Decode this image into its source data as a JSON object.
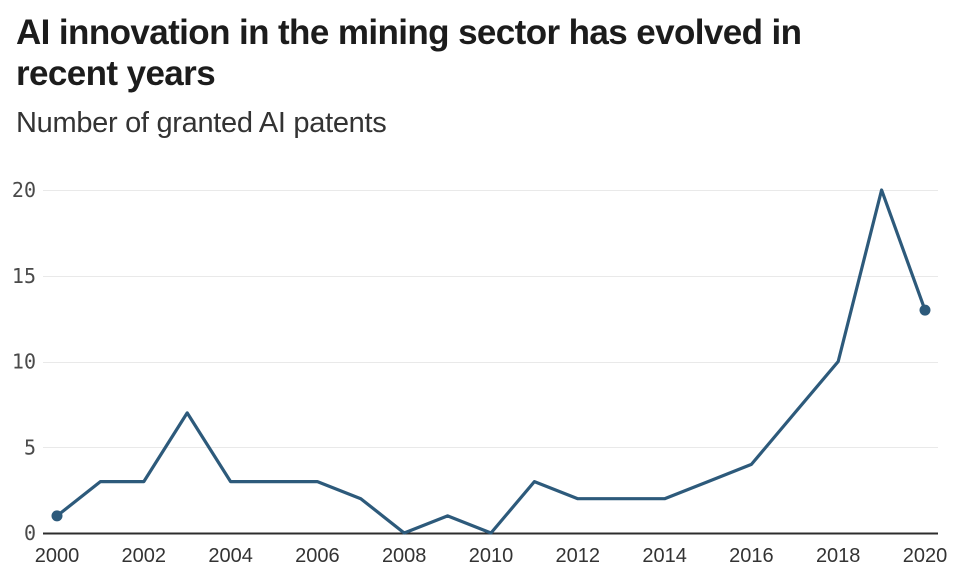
{
  "chart_data": {
    "type": "line",
    "title": "AI innovation in the mining sector has evolved in recent years",
    "subtitle": "Number of granted AI patents",
    "x": [
      2000,
      2001,
      2002,
      2003,
      2004,
      2005,
      2006,
      2007,
      2008,
      2009,
      2010,
      2011,
      2012,
      2013,
      2014,
      2015,
      2016,
      2017,
      2018,
      2019,
      2020
    ],
    "values": [
      1,
      3,
      3,
      7,
      3,
      3,
      3,
      2,
      0,
      1,
      0,
      3,
      2,
      2,
      2,
      3,
      4,
      7,
      10,
      20,
      13
    ],
    "xlabel": "",
    "ylabel": "",
    "ylim": [
      0,
      20
    ],
    "yticks": [
      0,
      5,
      10,
      15,
      20
    ],
    "xticks": [
      2000,
      2002,
      2004,
      2006,
      2008,
      2010,
      2012,
      2014,
      2016,
      2018,
      2020
    ],
    "grid": "horizontal-only",
    "legend": "none",
    "markers": "first-and-last-point-only"
  },
  "colors": {
    "line": "#2d5a7b",
    "marker": "#2d5a7b",
    "grid": "#e9e9e9",
    "axis": "#2d2d2d",
    "title_text": "#1c1c1c",
    "subtitle_text": "#333333",
    "y_tick_text": "#4a4a4a",
    "x_tick_text": "#333333"
  }
}
